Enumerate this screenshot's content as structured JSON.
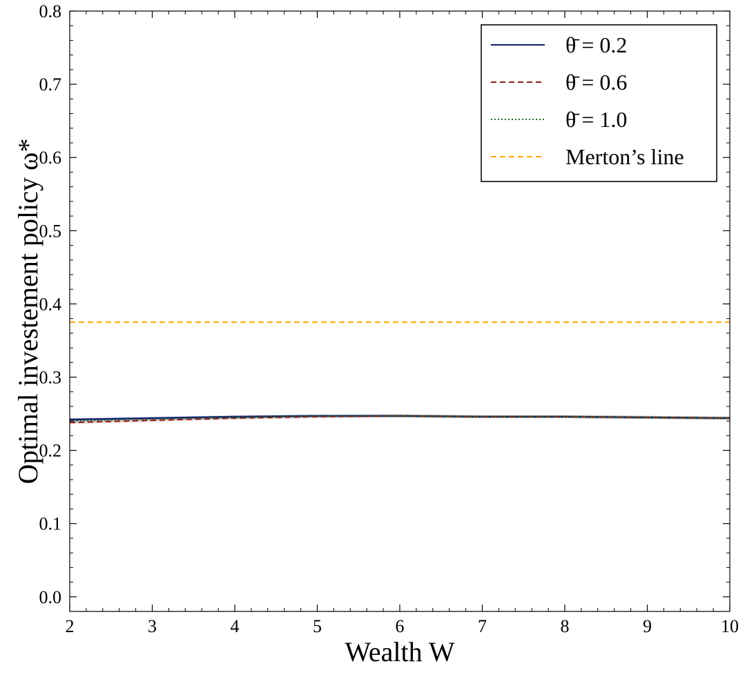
{
  "chart_data": {
    "type": "line",
    "title": "",
    "xlabel": "Wealth W",
    "ylabel": "Optimal investement policy ω*",
    "xlim": [
      2,
      10
    ],
    "ylim": [
      -0.02,
      0.8
    ],
    "x_ticks": [
      "2",
      "3",
      "4",
      "5",
      "6",
      "7",
      "8",
      "9",
      "10"
    ],
    "y_ticks": [
      "0.0",
      "0.1",
      "0.2",
      "0.3",
      "0.4",
      "0.5",
      "0.6",
      "0.7",
      "0.8"
    ],
    "grid": false,
    "legend_position": "top-right",
    "x": [
      2,
      3,
      4,
      5,
      6,
      7,
      8,
      9,
      10
    ],
    "series": [
      {
        "name": "θ̄ = 0.2",
        "style": "solid",
        "color": "#0b1a6e",
        "values": [
          0.242,
          0.244,
          0.246,
          0.247,
          0.247,
          0.246,
          0.246,
          0.245,
          0.244
        ]
      },
      {
        "name": "θ̄ = 0.6",
        "style": "dashed",
        "color": "#8b1a1a",
        "values": [
          0.238,
          0.241,
          0.244,
          0.246,
          0.247,
          0.246,
          0.246,
          0.245,
          0.244
        ]
      },
      {
        "name": "θ̄ = 1.0",
        "style": "dotted",
        "color": "#1f6b2a",
        "values": [
          0.24,
          0.243,
          0.245,
          0.247,
          0.247,
          0.246,
          0.246,
          0.245,
          0.244
        ]
      },
      {
        "name": "Merton’s line",
        "style": "dashed",
        "color": "#ffa500",
        "values": [
          0.375,
          0.375,
          0.375,
          0.375,
          0.375,
          0.375,
          0.375,
          0.375,
          0.375
        ]
      }
    ]
  }
}
